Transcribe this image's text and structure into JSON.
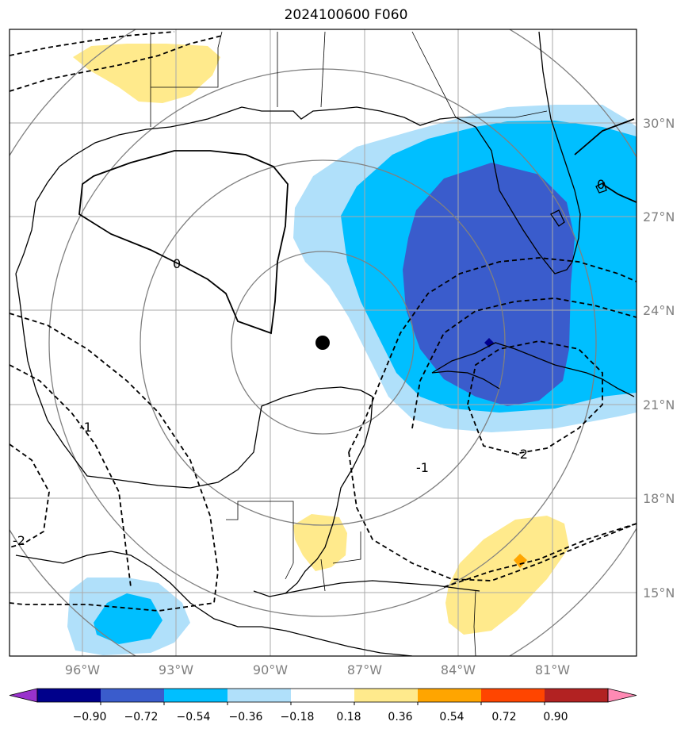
{
  "title": "2024100600 F060",
  "map": {
    "lat_labels": [
      {
        "text": "30°N",
        "value": 30
      },
      {
        "text": "27°N",
        "value": 27
      },
      {
        "text": "24°N",
        "value": 24
      },
      {
        "text": "21°N",
        "value": 21
      },
      {
        "text": "18°N",
        "value": 18
      },
      {
        "text": "15°N",
        "value": 15
      }
    ],
    "lon_labels": [
      {
        "text": "96°W",
        "value": -96
      },
      {
        "text": "93°W",
        "value": -93
      },
      {
        "text": "90°W",
        "value": -90
      },
      {
        "text": "87°W",
        "value": -87
      },
      {
        "text": "84°W",
        "value": -84
      },
      {
        "text": "81°W",
        "value": -81
      }
    ],
    "extent": {
      "lon_min": -98,
      "lon_max": -78,
      "lat_min": 13,
      "lat_max": 33
    },
    "storm_center": {
      "lon": -88.0,
      "lat": 22.9
    },
    "contour_labels": [
      "0",
      "0",
      "-1",
      "-1",
      "-2",
      "-2"
    ],
    "colors": {
      "dark_blue": "#3a5ccc",
      "mid_blue": "#00bfff",
      "light_blue": "#b0e0fa",
      "light_yellow": "#ffea8c",
      "orange": "#ffa500"
    }
  },
  "colorbar": {
    "ticks": [
      "−0.90",
      "−0.72",
      "−0.54",
      "−0.36",
      "−0.18",
      "0.18",
      "0.36",
      "0.54",
      "0.72",
      "0.90"
    ],
    "colors": [
      "#9932cc",
      "#00008b",
      "#3a5ccc",
      "#00bfff",
      "#b0e0fa",
      "#ffffff",
      "#ffea8c",
      "#ffa500",
      "#ff4500",
      "#b22222",
      "#ff8ab4"
    ]
  }
}
